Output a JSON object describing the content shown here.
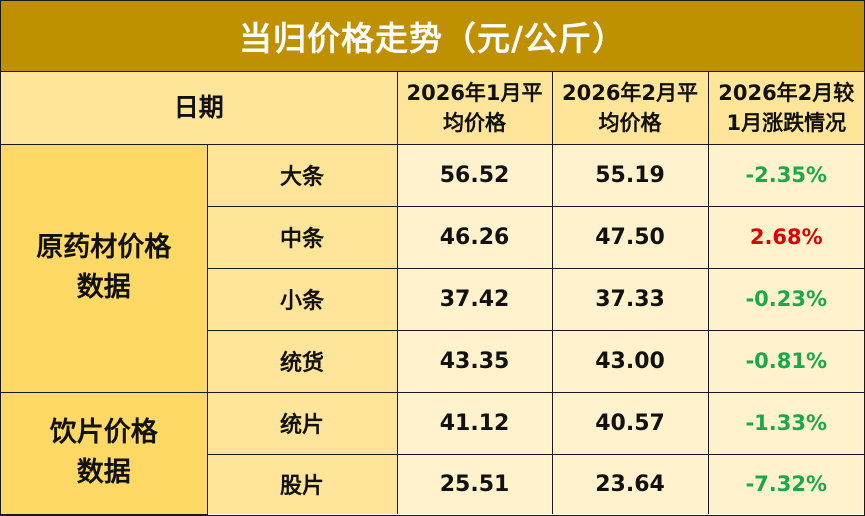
{
  "title": "当归价格走势（元/公斤）",
  "header": {
    "date": "日期",
    "jan": "2026年1月平\n均价格",
    "feb": "2026年2月平\n均价格",
    "change": "2026年2月较\n1月涨跌情况"
  },
  "groups": [
    {
      "name": "原药材价格\n数据",
      "rows": [
        {
          "item": "大条",
          "jan": "56.52",
          "feb": "55.19",
          "change": "-2.35%",
          "direction": "down"
        },
        {
          "item": "中条",
          "jan": "46.26",
          "feb": "47.50",
          "change": "2.68%",
          "direction": "up"
        },
        {
          "item": "小条",
          "jan": "37.42",
          "feb": "37.33",
          "change": "-0.23%",
          "direction": "down"
        },
        {
          "item": "统货",
          "jan": "43.35",
          "feb": "43.00",
          "change": "-0.81%",
          "direction": "down"
        }
      ]
    },
    {
      "name": "饮片价格\n数据",
      "rows": [
        {
          "item": "统片",
          "jan": "41.12",
          "feb": "40.57",
          "change": "-1.33%",
          "direction": "down"
        },
        {
          "item": "股片",
          "jan": "25.51",
          "feb": "23.64",
          "change": "-7.32%",
          "direction": "down"
        }
      ]
    }
  ],
  "colors": {
    "title_bg": "#bf9000",
    "header_bg": "#ffe599",
    "group_bg": "#ffd966",
    "cell_bg": "#fff2cc",
    "down": "#1aa84a",
    "up": "#e00000"
  }
}
